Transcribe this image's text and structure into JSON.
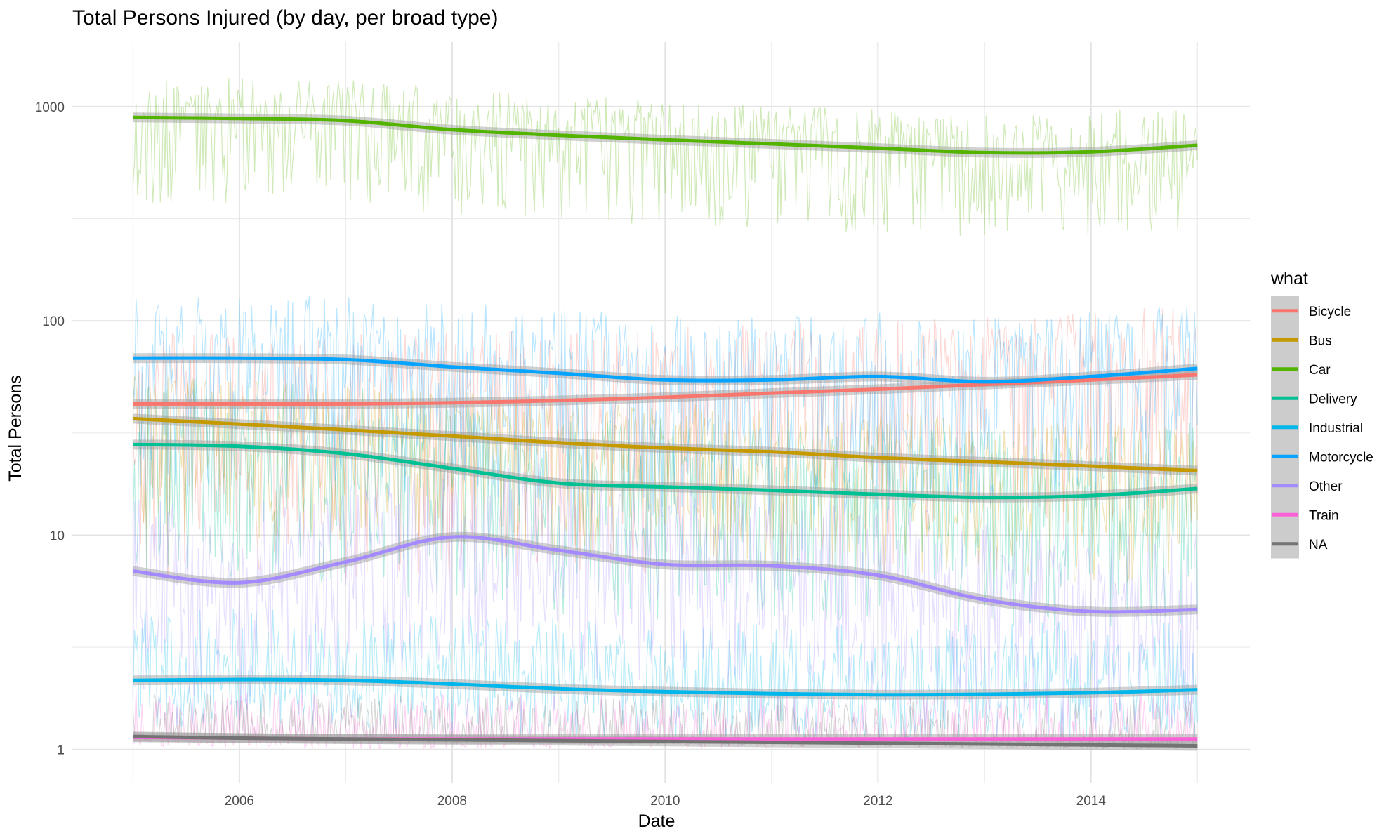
{
  "chart_data": {
    "type": "line",
    "title": "Total Persons Injured (by day, per broad type)",
    "xlabel": "Date",
    "ylabel": "Total Persons",
    "x_scale": "date",
    "y_scale": "log10",
    "xlim": [
      "2004-06-07",
      "2015-06-30"
    ],
    "ylim": [
      0.7,
      2000
    ],
    "x_ticks": [
      {
        "date": "2006-01-01",
        "label": "2006"
      },
      {
        "date": "2008-01-01",
        "label": "2008"
      },
      {
        "date": "2010-01-01",
        "label": "2010"
      },
      {
        "date": "2012-01-01",
        "label": "2012"
      },
      {
        "date": "2014-01-01",
        "label": "2014"
      }
    ],
    "y_ticks": [
      {
        "value": 1,
        "label": "1"
      },
      {
        "value": 10,
        "label": "10"
      },
      {
        "value": 100,
        "label": "100"
      },
      {
        "value": 1000,
        "label": "1000"
      }
    ],
    "grid": true,
    "legend": {
      "title": "what",
      "position": "right"
    },
    "x": [
      "2005-01-01",
      "2006-01-01",
      "2007-01-01",
      "2008-01-01",
      "2009-01-01",
      "2010-01-01",
      "2011-01-01",
      "2012-01-01",
      "2013-01-01",
      "2014-01-01",
      "2015-01-01"
    ],
    "series": [
      {
        "name": "Bicycle",
        "color": "#F8766D",
        "values": [
          41,
          41,
          41,
          41.5,
          42.5,
          44,
          46,
          48,
          50.5,
          53,
          56
        ],
        "daily_range": [
          5,
          130
        ]
      },
      {
        "name": "Bus",
        "color": "#C49A00",
        "values": [
          35,
          33,
          31,
          29,
          27,
          25.5,
          24.5,
          23,
          22,
          21,
          20
        ],
        "daily_range": [
          5,
          60
        ]
      },
      {
        "name": "Car",
        "color": "#53B400",
        "values": [
          890,
          880,
          860,
          780,
          735,
          700,
          670,
          640,
          610,
          615,
          660
        ],
        "daily_range": [
          220,
          1450
        ]
      },
      {
        "name": "Delivery",
        "color": "#00C094",
        "values": [
          26.5,
          26,
          24,
          20.5,
          17.5,
          16.8,
          16.2,
          15.5,
          15,
          15.3,
          16.5
        ],
        "daily_range": [
          3,
          60
        ]
      },
      {
        "name": "Industrial",
        "color": "#00B6EB",
        "values": [
          2.1,
          2.12,
          2.1,
          2.02,
          1.92,
          1.86,
          1.82,
          1.8,
          1.81,
          1.84,
          1.9
        ],
        "daily_range": [
          1,
          5
        ]
      },
      {
        "name": "Motorcycle",
        "color": "#06A4FF",
        "values": [
          67,
          67,
          66,
          61,
          57,
          53,
          53,
          55,
          52,
          55,
          60
        ],
        "daily_range": [
          10,
          145
        ]
      },
      {
        "name": "Other",
        "color": "#A58AFF",
        "values": [
          6.8,
          6,
          7.5,
          9.8,
          8.5,
          7.3,
          7.2,
          6.5,
          5,
          4.4,
          4.5
        ],
        "daily_range": [
          1,
          25
        ]
      },
      {
        "name": "Train",
        "color": "#FB61D7",
        "values": [
          1.14,
          1.13,
          1.12,
          1.12,
          1.12,
          1.12,
          1.12,
          1.12,
          1.12,
          1.12,
          1.12
        ],
        "daily_range": [
          1,
          2
        ]
      },
      {
        "name": "NA",
        "color": "#737373",
        "values": [
          1.15,
          1.13,
          1.12,
          1.11,
          1.1,
          1.09,
          1.08,
          1.07,
          1.06,
          1.05,
          1.04
        ],
        "daily_range": [
          1,
          2
        ]
      }
    ]
  }
}
